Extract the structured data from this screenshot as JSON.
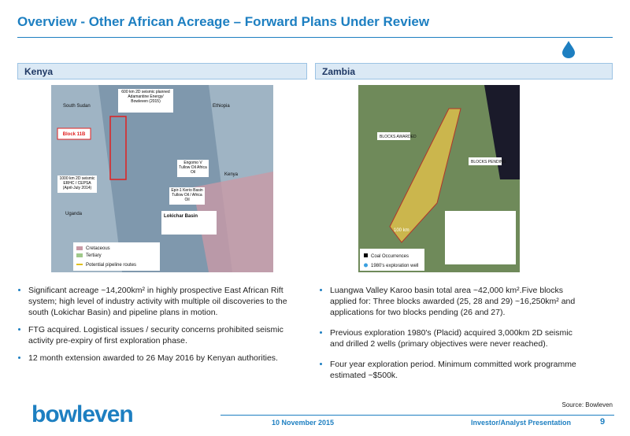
{
  "header": {
    "title": "Overview - Other African Acreage – Forward Plans Under Review"
  },
  "kenya": {
    "heading": "Kenya",
    "map_labels": [
      "South Sudan",
      "Ethiopia",
      "Block 11B",
      "Kenya",
      "Uganda",
      "Lokichar Basin",
      "Cretaceous",
      "Tertiary",
      "Potential pipeline routes",
      "600 km 2D seismic planned Adamantine Energy/ Bowleven (2015)",
      "1000 km 2D seismic ERHC / CEPSA (April-July 2014)",
      "Engomo V Tullow Oil Africa Oil",
      "Epir-1 Kerio Basin Tullow Oil / Africa Oil"
    ],
    "bullets": [
      "Significant acreage ~14,200km² in highly prospective East African Rift system; high level of industry activity with multiple oil discoveries to the south (Lokichar Basin) and pipeline plans in motion.",
      "FTG acquired. Logistical issues / security concerns prohibited seismic activity pre-expiry of first exploration phase.",
      "12 month extension awarded to 26 May 2016 by Kenyan authorities."
    ]
  },
  "zambia": {
    "heading": "Zambia",
    "map_labels": [
      "BLOCKS AWARDED",
      "BLOCKS PENDING",
      "100 km",
      "Coal Occurrences",
      "1980's exploration well"
    ],
    "bullets": [
      "Luangwa Valley Karoo basin total area ~42,000 km².Five blocks applied for: Three blocks awarded (25, 28 and 29) ~16,250km² and applications for two blocks pending (26 and 27).",
      "Previous exploration 1980's (Placid) acquired 3,000km 2D seismic and drilled 2 wells (primary objectives were never reached).",
      "Four year exploration period. Minimum committed work programme estimated ~$500k."
    ]
  },
  "source": "Source: Bowleven",
  "footer": {
    "logo": "bowleven",
    "date": "10 November 2015",
    "event": "Investor/Analyst Presentation",
    "page": "9"
  }
}
